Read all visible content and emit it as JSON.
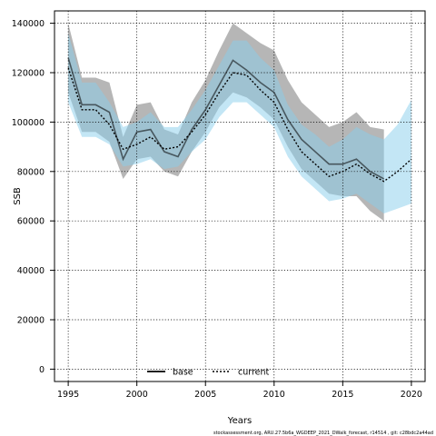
{
  "chart_data": {
    "type": "line",
    "xlabel": "Years",
    "ylabel": "SSB",
    "xlim": [
      1994,
      2021
    ],
    "ylim": [
      -5000,
      145000
    ],
    "xticks": [
      1995,
      2000,
      2005,
      2010,
      2015,
      2020
    ],
    "yticks": [
      0,
      20000,
      40000,
      60000,
      80000,
      100000,
      120000,
      140000
    ],
    "grid": true,
    "legend_position": "bottom-center",
    "colors": {
      "base_band": "#a9a9a9",
      "current_band": "#87ceeb",
      "base_line": "#000000",
      "current_line": "#000000",
      "overlap_band": "#7fa9bf"
    },
    "series": [
      {
        "name": "base",
        "style": "solid",
        "x": [
          1995,
          1996,
          1997,
          1998,
          1999,
          2000,
          2001,
          2002,
          2003,
          2004,
          2005,
          2006,
          2007,
          2008,
          2009,
          2010,
          2011,
          2012,
          2013,
          2014,
          2015,
          2016,
          2017,
          2018
        ],
        "values": [
          126000,
          107000,
          107000,
          104000,
          85000,
          96000,
          97000,
          88000,
          86000,
          97000,
          105000,
          115000,
          125000,
          121000,
          116000,
          112000,
          101000,
          93000,
          88000,
          83000,
          83000,
          85000,
          80000,
          77000
        ],
        "lower": [
          112000,
          96000,
          96000,
          92000,
          77000,
          85000,
          86000,
          80000,
          78000,
          88000,
          96000,
          106000,
          112000,
          110000,
          106000,
          101000,
          90000,
          81000,
          76000,
          71000,
          70000,
          70000,
          64000,
          60000
        ],
        "upper": [
          140000,
          118000,
          118000,
          116000,
          94000,
          107000,
          108000,
          97000,
          95000,
          108000,
          117000,
          129000,
          140000,
          136000,
          132000,
          129000,
          117000,
          108000,
          103000,
          98000,
          100000,
          104000,
          98000,
          97000
        ]
      },
      {
        "name": "current",
        "style": "dotted",
        "x": [
          1995,
          1996,
          1997,
          1998,
          1999,
          2000,
          2001,
          2002,
          2003,
          2004,
          2005,
          2006,
          2007,
          2008,
          2009,
          2010,
          2011,
          2012,
          2013,
          2014,
          2015,
          2016,
          2017,
          2018,
          2019,
          2020
        ],
        "values": [
          122000,
          105000,
          105000,
          99000,
          89000,
          91000,
          94000,
          89000,
          90000,
          96000,
          103000,
          112000,
          120000,
          119000,
          113000,
          108000,
          97000,
          88000,
          83000,
          78000,
          80000,
          83000,
          79000,
          76000,
          80000,
          85000
        ],
        "lower": [
          108000,
          94000,
          94000,
          91000,
          82000,
          83000,
          85000,
          81000,
          82000,
          88000,
          93000,
          102000,
          108000,
          108000,
          103000,
          98000,
          86000,
          78000,
          73000,
          68000,
          69000,
          71000,
          67000,
          63000,
          65000,
          67000
        ],
        "upper": [
          136000,
          116000,
          116000,
          108000,
          98000,
          100000,
          104000,
          98000,
          98000,
          105000,
          113000,
          123000,
          133000,
          133000,
          126000,
          121000,
          107000,
          99000,
          95000,
          90000,
          93000,
          98000,
          95000,
          93000,
          99000,
          109000
        ]
      }
    ]
  },
  "footnote": "stockassessment.org,  ARU.27.5b6a_WGDEEP_2021_DWalk_forecast,  r14514 ,  git:  c28bdc2a44ad"
}
